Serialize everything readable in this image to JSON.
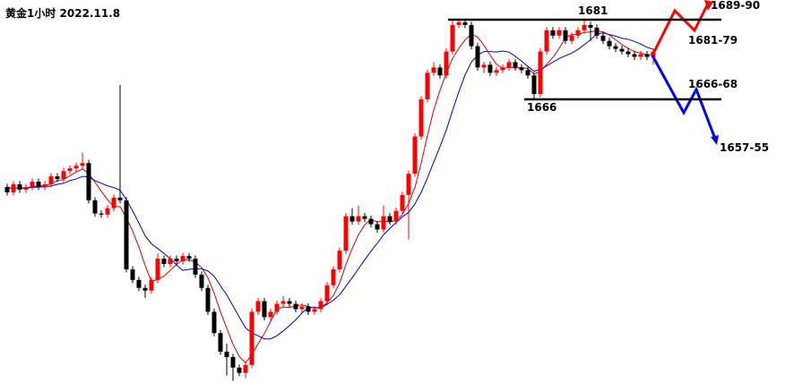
{
  "chart_data": {
    "type": "candlestick",
    "title": "黄金1小时 2022.11.8",
    "ylim": [
      1612.6,
      1684.7
    ],
    "up_color": "#ff0000",
    "down_color": "#000000",
    "open": [
      1649.5,
      1648.5,
      1650,
      1649,
      1649.5,
      1650.5,
      1649.5,
      1650,
      1651.5,
      1651,
      1652.5,
      1653,
      1653.5,
      1654,
      1647,
      1644.5,
      1644.3,
      1645.5,
      1647.5,
      1647,
      1634,
      1632,
      1630.5,
      1630,
      1632,
      1636,
      1635,
      1636,
      1635.5,
      1636.5,
      1636,
      1633,
      1630.5,
      1626,
      1622,
      1618.5,
      1617.5,
      1615.5,
      1614.5,
      1616,
      1626,
      1628,
      1625,
      1626,
      1627.5,
      1628,
      1627.5,
      1626.5,
      1627,
      1626,
      1626.5,
      1628,
      1631,
      1634,
      1637.5,
      1644,
      1643,
      1644,
      1643.5,
      1642.5,
      1641.5,
      1644,
      1643,
      1645,
      1648,
      1652,
      1659,
      1666,
      1671,
      1672,
      1670.5,
      1675,
      1680,
      1680.5,
      1680,
      1676,
      1672,
      1672.5,
      1671,
      1671.5,
      1672,
      1673,
      1672,
      1671.5,
      1670.5,
      1667,
      1675,
      1679,
      1678,
      1679,
      1677,
      1678,
      1679,
      1680,
      1679.5,
      1678,
      1677,
      1676,
      1675.5,
      1675,
      1674.5,
      1674,
      1674.5,
      1674
    ],
    "high": [
      1650.1,
      1650.6,
      1650.6,
      1650.1,
      1651.1,
      1651.1,
      1650.6,
      1652.1,
      1652.1,
      1653.1,
      1653.6,
      1654.1,
      1656,
      1654.6,
      1647.6,
      1645.1,
      1646.1,
      1648.1,
      1668.7,
      1647.6,
      1634.6,
      1632.6,
      1631.1,
      1632.6,
      1637,
      1636.6,
      1636.6,
      1636.6,
      1637.1,
      1637.1,
      1636.6,
      1633.6,
      1631.1,
      1626.6,
      1622.6,
      1620,
      1618.1,
      1616.1,
      1616.6,
      1626.6,
      1628.6,
      1628.6,
      1626.6,
      1628.1,
      1629,
      1628.6,
      1628.1,
      1627.6,
      1627.6,
      1627.1,
      1628.6,
      1631.6,
      1634.6,
      1638.1,
      1644.6,
      1645.5,
      1646,
      1644.6,
      1644.1,
      1643.1,
      1646,
      1644.6,
      1645.6,
      1648.6,
      1652.6,
      1659.6,
      1666.6,
      1671.6,
      1673,
      1672.6,
      1675.6,
      1681,
      1681,
      1681,
      1680.6,
      1676.6,
      1673.1,
      1673.1,
      1672.1,
      1672.6,
      1673.6,
      1673.6,
      1672.6,
      1672.1,
      1671.1,
      1675.6,
      1679.6,
      1679.6,
      1679.6,
      1679.6,
      1678.6,
      1679.6,
      1681.2,
      1680.6,
      1680.1,
      1678.6,
      1677.6,
      1676.6,
      1676.1,
      1675.6,
      1675.1,
      1675.1,
      1675.1,
      1675.6
    ],
    "low": [
      1647.9,
      1647.9,
      1648.4,
      1648.4,
      1648.9,
      1648.9,
      1648.9,
      1649.4,
      1650.4,
      1650.4,
      1651.9,
      1652.4,
      1652.9,
      1646.4,
      1643.9,
      1643.7,
      1643.7,
      1644.9,
      1646.4,
      1633.4,
      1631.4,
      1629.9,
      1628.6,
      1629.4,
      1631.4,
      1634.4,
      1634.4,
      1634.9,
      1634.9,
      1635.4,
      1632.4,
      1629.9,
      1625.4,
      1621.4,
      1617.9,
      1614,
      1613,
      1613.9,
      1613.5,
      1615.4,
      1625.4,
      1624.4,
      1624.4,
      1625.4,
      1626.9,
      1626.9,
      1625.9,
      1625.9,
      1625.4,
      1625.4,
      1625.9,
      1627.4,
      1630.4,
      1633.4,
      1636.9,
      1642.4,
      1642.4,
      1642.9,
      1641.9,
      1640.9,
      1640.9,
      1642.4,
      1642.4,
      1644.4,
      1639.6,
      1651.4,
      1658.4,
      1665.4,
      1670.4,
      1669.9,
      1669.9,
      1674.4,
      1679.4,
      1679.4,
      1675.4,
      1671.4,
      1670.9,
      1670.4,
      1670.4,
      1670.9,
      1671.4,
      1671.4,
      1670.9,
      1669.9,
      1666,
      1666.4,
      1674.4,
      1677.4,
      1677.4,
      1676.4,
      1676.4,
      1677.4,
      1678.4,
      1677,
      1677.4,
      1676.4,
      1675.4,
      1674.9,
      1674.4,
      1673.9,
      1673.4,
      1673.4,
      1673.4,
      1672.5
    ],
    "close": [
      1648.5,
      1650,
      1649,
      1649.5,
      1650.5,
      1649.5,
      1650,
      1651.5,
      1651,
      1652.5,
      1653,
      1653.5,
      1654,
      1647,
      1644.5,
      1644.3,
      1645.5,
      1647.5,
      1647,
      1634,
      1632,
      1630.5,
      1630,
      1632,
      1636,
      1635,
      1636,
      1635.5,
      1636.5,
      1636,
      1633,
      1630.5,
      1626,
      1622,
      1618.5,
      1617.5,
      1615.5,
      1614.5,
      1616,
      1626,
      1628,
      1625,
      1626,
      1627.5,
      1628,
      1627.5,
      1626.5,
      1627,
      1626,
      1626.5,
      1628,
      1631,
      1634,
      1637.5,
      1644,
      1643,
      1644,
      1643.5,
      1642.5,
      1641.5,
      1644,
      1643,
      1645,
      1648,
      1652,
      1659,
      1666,
      1671,
      1672,
      1670.5,
      1675,
      1680,
      1680.5,
      1680,
      1676,
      1672,
      1672.5,
      1671,
      1671.5,
      1672,
      1673,
      1672,
      1671.5,
      1670.5,
      1667,
      1675,
      1679,
      1678,
      1679,
      1677,
      1678,
      1679,
      1680,
      1679.5,
      1678,
      1677,
      1676,
      1675.5,
      1675,
      1674.5,
      1674,
      1674.5,
      1674,
      1675
    ],
    "ma_lines": [
      {
        "color": "#e00000",
        "values": [
          1649.3,
          1649.3,
          1649.3,
          1649.3,
          1649.5,
          1649.7,
          1649.7,
          1650.1,
          1650.7,
          1650.9,
          1651.6,
          1652.3,
          1652.9,
          1652.0,
          1650.4,
          1648.7,
          1647.1,
          1645.8,
          1645.8,
          1643.7,
          1641.2,
          1638.2,
          1634.7,
          1631.7,
          1632.1,
          1632.7,
          1633.8,
          1634.9,
          1635.8,
          1635.8,
          1635.4,
          1634.3,
          1632.4,
          1629.5,
          1626.0,
          1622.9,
          1619.9,
          1617.6,
          1616.4,
          1617.9,
          1620.0,
          1621.9,
          1624.2,
          1626.5,
          1626.9,
          1626.8,
          1627.1,
          1627.3,
          1627.0,
          1626.7,
          1626.8,
          1627.7,
          1629.1,
          1631.4,
          1634.9,
          1637.9,
          1640.5,
          1642.4,
          1643.4,
          1642.9,
          1643.1,
          1642.9,
          1643.2,
          1644.3,
          1646.4,
          1649.4,
          1654.0,
          1659.2,
          1664.0,
          1667.7,
          1670.9,
          1673.7,
          1675.6,
          1677.2,
          1678.3,
          1677.7,
          1676.2,
          1674.3,
          1672.6,
          1671.8,
          1672.0,
          1671.9,
          1672.0,
          1671.8,
          1670.8,
          1671.2,
          1672.6,
          1673.9,
          1675.6,
          1677.6,
          1678.2,
          1678.2,
          1678.6,
          1678.7,
          1678.9,
          1678.7,
          1678.1,
          1677.2,
          1676.3,
          1675.6,
          1675.0,
          1674.7,
          1674.4,
          1674.4
        ]
      },
      {
        "color": "#0000d0",
        "values": [
          1649.3,
          1649.3,
          1649.3,
          1649.3,
          1649.4,
          1649.5,
          1649.5,
          1649.7,
          1650.0,
          1650.2,
          1650.7,
          1651.0,
          1651.5,
          1651.4,
          1650.7,
          1650.2,
          1649.7,
          1649.4,
          1648.9,
          1647.1,
          1645.0,
          1642.7,
          1640.3,
          1638.8,
          1637.9,
          1637.0,
          1636.0,
          1634.8,
          1633.8,
          1634.0,
          1634.1,
          1634.1,
          1633.7,
          1632.7,
          1630.9,
          1629.2,
          1627.1,
          1625.0,
          1623.0,
          1622.0,
          1621.5,
          1620.9,
          1620.9,
          1621.5,
          1622.4,
          1623.4,
          1624.5,
          1625.8,
          1626.8,
          1626.8,
          1626.8,
          1627.4,
          1628.2,
          1629.2,
          1630.8,
          1632.4,
          1634.1,
          1635.8,
          1637.4,
          1638.9,
          1640.5,
          1641.7,
          1642.8,
          1643.9,
          1644.7,
          1646.3,
          1648.5,
          1651.2,
          1654.2,
          1657.1,
          1660.2,
          1663.9,
          1667.4,
          1670.6,
          1673.0,
          1674.3,
          1675.0,
          1675.0,
          1674.9,
          1675.1,
          1674.9,
          1674.1,
          1673.2,
          1672.2,
          1671.3,
          1671.6,
          1672.3,
          1673.0,
          1673.7,
          1674.2,
          1674.7,
          1675.4,
          1676.3,
          1677.2,
          1678.3,
          1678.5,
          1678.2,
          1677.9,
          1677.5,
          1677.3,
          1676.9,
          1676.4,
          1675.8,
          1675.4
        ]
      }
    ],
    "levels": [
      1681,
      1666
    ],
    "annotations": [
      "1689-90",
      "1681-79",
      "1666-68",
      "1657-55"
    ]
  }
}
